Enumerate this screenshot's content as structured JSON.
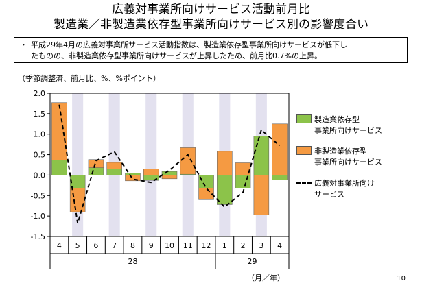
{
  "title_line1": "広義対事業所向けサービス活動前月比",
  "title_line2": "製造業／非製造業依存型事業所向けサービス別の影響度合い",
  "note": {
    "bullet": "・",
    "line1": "平成29年4月の広義対事業所サービス活動指数は、製造業依存型事業所向けサービスが低下し",
    "line2": "たものの、非製造業依存型事業所向けサービスが上昇したため、前月比0.7%の上昇。"
  },
  "unit_label": "（季節調整済、前月比、%、%ポイント）",
  "page_number": "10",
  "colors": {
    "manufacturing": "#8cc34a",
    "non_manufacturing": "#f59a42",
    "shade": "#e3e1ef",
    "line": "#000000"
  },
  "chart_data": {
    "type": "bar",
    "stacked": true,
    "categories": [
      "4",
      "5",
      "6",
      "7",
      "8",
      "9",
      "10",
      "11",
      "12",
      "1",
      "2",
      "3",
      "4"
    ],
    "year_labels": [
      {
        "label": "28",
        "start": 0,
        "end": 8
      },
      {
        "label": "29",
        "start": 9,
        "end": 12
      }
    ],
    "x_unit_label": "（月／年）",
    "series": [
      {
        "name": "製造業依存型\n事業所向けサービス",
        "type": "bar",
        "values": [
          0.37,
          -0.32,
          0.18,
          0.15,
          0.05,
          -0.13,
          0.09,
          0.02,
          -0.32,
          -0.72,
          -0.32,
          0.95,
          -0.12
        ]
      },
      {
        "name": "非製造業依存型\n事業所向けサービス",
        "type": "bar",
        "values": [
          1.4,
          -0.58,
          0.2,
          0.16,
          -0.14,
          0.15,
          -0.09,
          0.65,
          -0.28,
          0.58,
          0.3,
          -0.97,
          1.25
        ]
      },
      {
        "name": "広義対事業所向け\nサービス",
        "type": "line",
        "values": [
          1.72,
          -1.18,
          0.35,
          0.57,
          -0.1,
          -0.18,
          0.12,
          0.5,
          -0.32,
          -0.78,
          -0.42,
          1.1,
          0.72
        ]
      }
    ],
    "ylim": [
      -1.5,
      2.0
    ],
    "yticks": [
      "2.0",
      "1.5",
      "1.0",
      "0.5",
      "0.0",
      "-0.5",
      "-1.0",
      "-1.5"
    ],
    "shaded_categories": [
      1,
      3,
      5,
      7,
      9,
      11
    ],
    "legend_position": "right",
    "grid": false
  }
}
